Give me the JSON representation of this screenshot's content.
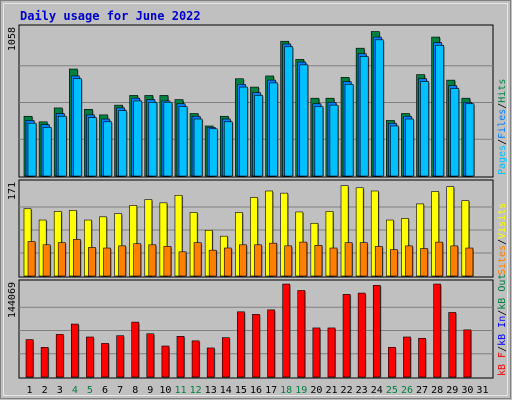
{
  "colors": {
    "background": "#C0C0C0",
    "border": "#808080",
    "panel_bg": "#C0C0C0",
    "grid": "#808080",
    "title": "#0000CC",
    "hits": "#008040",
    "files": "#0080FF",
    "pages": "#00C0FF",
    "visits": "#FFFF00",
    "sites": "#FF8000",
    "kbytes": "#FF0000",
    "kb_in": "#0000FF",
    "kb_out": "#008040",
    "weekday": "#000000",
    "weekend": "#008040"
  },
  "chart_data": {
    "type": "bar",
    "title": "Daily usage for June 2022",
    "x": [
      "1",
      "2",
      "3",
      "4",
      "5",
      "6",
      "7",
      "8",
      "9",
      "10",
      "11",
      "12",
      "13",
      "14",
      "15",
      "16",
      "17",
      "18",
      "19",
      "20",
      "21",
      "22",
      "23",
      "24",
      "25",
      "26",
      "27",
      "28",
      "29",
      "30",
      "31"
    ],
    "weekend_days": [
      "4",
      "5",
      "11",
      "12",
      "18",
      "19",
      "25",
      "26"
    ],
    "panels": [
      {
        "name": "top",
        "max_label": "1058",
        "ylim": [
          0,
          1058
        ],
        "legend": [
          {
            "text": "Pages",
            "color_key": "pages"
          },
          {
            "text": "/",
            "color_key": "weekday"
          },
          {
            "text": "Files",
            "color_key": "files"
          },
          {
            "text": "/",
            "color_key": "weekday"
          },
          {
            "text": "Hits",
            "color_key": "hits"
          }
        ],
        "series": [
          {
            "name": "Hits",
            "color_key": "hits",
            "values": [
              430,
              390,
              490,
              770,
              480,
              440,
              510,
              580,
              580,
              580,
              550,
              450,
              360,
              430,
              700,
              640,
              720,
              970,
              840,
              560,
              560,
              710,
              920,
              1040,
              400,
              450,
              730,
              1000,
              690,
              560,
              0
            ]
          },
          {
            "name": "Files",
            "color_key": "files",
            "values": [
              400,
              370,
              450,
              720,
              440,
              410,
              490,
              560,
              550,
              540,
              520,
              430,
              350,
              410,
              660,
              600,
              690,
              950,
              820,
              520,
              530,
              680,
              880,
              1000,
              380,
              430,
              700,
              960,
              650,
              530,
              0
            ]
          },
          {
            "name": "Pages",
            "color_key": "pages",
            "values": [
              380,
              350,
              430,
              700,
              420,
              390,
              470,
              540,
              530,
              530,
              500,
              410,
              340,
              390,
              640,
              580,
              670,
              930,
              800,
              500,
              510,
              660,
              860,
              980,
              360,
              410,
              680,
              940,
              630,
              520,
              0
            ]
          }
        ]
      },
      {
        "name": "middle",
        "max_label": "171",
        "ylim": [
          0,
          171
        ],
        "legend": [
          {
            "text": "Sites",
            "color_key": "sites"
          },
          {
            "text": "/",
            "color_key": "weekday"
          },
          {
            "text": "Visits",
            "color_key": "visits"
          }
        ],
        "series": [
          {
            "name": "Visits",
            "color_key": "visits",
            "values": [
              125,
              104,
              120,
              122,
              104,
              110,
              116,
              131,
              142,
              136,
              150,
              118,
              85,
              74,
              118,
              146,
              158,
              154,
              119,
              98,
              120,
              168,
              164,
              158,
              104,
              107,
              134,
              157,
              166,
              140,
              0
            ]
          },
          {
            "name": "Sites",
            "color_key": "sites",
            "values": [
              64,
              58,
              62,
              68,
              53,
              52,
              56,
              60,
              58,
              55,
              45,
              62,
              48,
              52,
              58,
              58,
              61,
              56,
              63,
              57,
              52,
              62,
              62,
              55,
              49,
              56,
              51,
              63,
              56,
              52,
              0
            ]
          }
        ]
      },
      {
        "name": "bottom",
        "max_label": "144069",
        "ylim": [
          0,
          144069
        ],
        "legend": [
          {
            "text": "kB F",
            "color_key": "kbytes"
          },
          {
            "text": "/",
            "color_key": "weekday"
          },
          {
            "text": "kB In",
            "color_key": "kb_in"
          },
          {
            "text": "/",
            "color_key": "weekday"
          },
          {
            "text": "kB Out",
            "color_key": "kb_out"
          }
        ],
        "series": [
          {
            "name": "kB F",
            "color_key": "kbytes",
            "values": [
              58000,
              46000,
              66000,
              82000,
              62000,
              52000,
              64000,
              85000,
              67000,
              48000,
              63000,
              56000,
              45000,
              61000,
              101000,
              97000,
              104000,
              144000,
              134000,
              76000,
              76000,
              128000,
              130000,
              142000,
              46000,
              62000,
              60000,
              144000,
              100000,
              73000,
              0
            ]
          }
        ]
      }
    ],
    "grid": true
  }
}
